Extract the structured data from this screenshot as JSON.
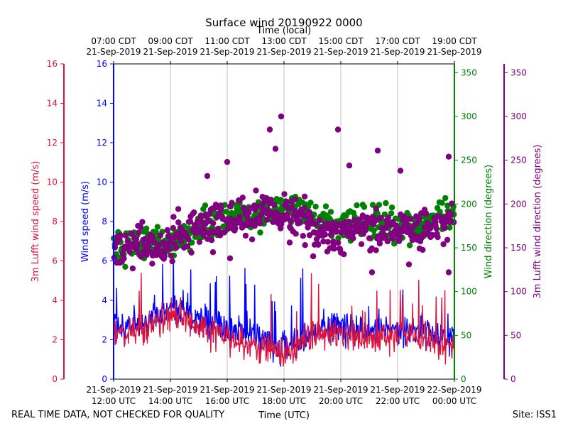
{
  "chart_data": {
    "type": "line",
    "title": "Surface wind 20190922 0000",
    "top_axis_label": "Time (local)",
    "xlabel": "Time (UTC)",
    "footer_left": "REAL TIME DATA, NOT CHECKED FOR QUALITY",
    "footer_right": "Site: ISS1",
    "x_range_hours_utc": [
      12,
      24
    ],
    "bottom_ticks": [
      {
        "hour": 12,
        "date": "21-Sep-2019",
        "time": "12:00 UTC"
      },
      {
        "hour": 14,
        "date": "21-Sep-2019",
        "time": "14:00 UTC"
      },
      {
        "hour": 16,
        "date": "21-Sep-2019",
        "time": "16:00 UTC"
      },
      {
        "hour": 18,
        "date": "21-Sep-2019",
        "time": "18:00 UTC"
      },
      {
        "hour": 20,
        "date": "21-Sep-2019",
        "time": "20:00 UTC"
      },
      {
        "hour": 22,
        "date": "21-Sep-2019",
        "time": "22:00 UTC"
      },
      {
        "hour": 24,
        "date": "22-Sep-2019",
        "time": "00:00 UTC"
      }
    ],
    "top_ticks": [
      {
        "hour": 12,
        "time": "07:00 CDT",
        "date": "21-Sep-2019"
      },
      {
        "hour": 14,
        "time": "09:00 CDT",
        "date": "21-Sep-2019"
      },
      {
        "hour": 16,
        "time": "11:00 CDT",
        "date": "21-Sep-2019"
      },
      {
        "hour": 18,
        "time": "13:00 CDT",
        "date": "21-Sep-2019"
      },
      {
        "hour": 20,
        "time": "15:00 CDT",
        "date": "21-Sep-2019"
      },
      {
        "hour": 22,
        "time": "17:00 CDT",
        "date": "21-Sep-2019"
      },
      {
        "hour": 24,
        "time": "19:00 CDT",
        "date": "21-Sep-2019"
      }
    ],
    "axes": {
      "speed_left": {
        "label": "Wind speed (m/s)",
        "range": [
          0,
          16
        ],
        "ticks": [
          "0",
          "2",
          "4",
          "6",
          "8",
          "10",
          "12",
          "14",
          "16"
        ],
        "color": "#0000ff"
      },
      "lufft_speed": {
        "label": "3m Lufft wind speed (m/s)",
        "range": [
          0,
          16
        ],
        "ticks": [
          "0",
          "2",
          "4",
          "6",
          "8",
          "10",
          "12",
          "14",
          "16"
        ],
        "color": "#dc143c"
      },
      "direction_right": {
        "label": "Wind direction (degrees)",
        "range": [
          0,
          360
        ],
        "ticks": [
          "0",
          "50",
          "100",
          "150",
          "200",
          "250",
          "300",
          "350"
        ],
        "color": "#008000"
      },
      "lufft_direction": {
        "label": "3m Lufft wind direction (degrees)",
        "range": [
          0,
          360
        ],
        "ticks": [
          "0",
          "50",
          "100",
          "150",
          "200",
          "250",
          "300",
          "350"
        ],
        "color": "#800080"
      }
    },
    "series": [
      {
        "name": "Wind speed",
        "kind": "line",
        "axis": "speed",
        "color": "#0000ff",
        "profile": [
          [
            12.0,
            2.7
          ],
          [
            13.0,
            2.8
          ],
          [
            14.0,
            3.6
          ],
          [
            14.5,
            3.4
          ],
          [
            15.0,
            3.0
          ],
          [
            16.0,
            2.6
          ],
          [
            17.0,
            2.2
          ],
          [
            18.0,
            1.5
          ],
          [
            19.0,
            2.4
          ],
          [
            20.0,
            2.7
          ],
          [
            21.0,
            2.4
          ],
          [
            22.0,
            2.5
          ],
          [
            23.0,
            2.4
          ],
          [
            24.0,
            2.2
          ]
        ]
      },
      {
        "name": "3m Lufft wind speed",
        "kind": "line",
        "axis": "speed",
        "color": "#dc143c",
        "profile": [
          [
            12.0,
            2.4
          ],
          [
            13.0,
            2.4
          ],
          [
            14.0,
            3.3
          ],
          [
            14.5,
            3.1
          ],
          [
            15.0,
            2.7
          ],
          [
            16.0,
            2.1
          ],
          [
            17.0,
            1.7
          ],
          [
            18.0,
            1.2
          ],
          [
            19.0,
            2.2
          ],
          [
            20.0,
            2.3
          ],
          [
            21.0,
            1.9
          ],
          [
            22.0,
            2.2
          ],
          [
            23.0,
            2.1
          ],
          [
            24.0,
            1.6
          ]
        ]
      },
      {
        "name": "Wind direction",
        "kind": "scatter",
        "axis": "direction",
        "color": "#008000",
        "profile": [
          [
            12.0,
            150
          ],
          [
            13.0,
            155
          ],
          [
            14.0,
            158
          ],
          [
            15.0,
            170
          ],
          [
            16.0,
            185
          ],
          [
            17.0,
            190
          ],
          [
            18.0,
            200
          ],
          [
            19.0,
            185
          ],
          [
            20.0,
            175
          ],
          [
            21.0,
            180
          ],
          [
            22.0,
            178
          ],
          [
            23.0,
            180
          ],
          [
            24.0,
            190
          ]
        ]
      },
      {
        "name": "3m Lufft wind direction",
        "kind": "scatter",
        "axis": "direction",
        "color": "#800080",
        "profile": [
          [
            12.0,
            150
          ],
          [
            13.0,
            155
          ],
          [
            14.0,
            155
          ],
          [
            15.0,
            178
          ],
          [
            16.0,
            180
          ],
          [
            17.0,
            190
          ],
          [
            18.0,
            195
          ],
          [
            19.0,
            170
          ],
          [
            20.0,
            165
          ],
          [
            21.0,
            172
          ],
          [
            22.0,
            170
          ],
          [
            23.0,
            168
          ],
          [
            24.0,
            180
          ]
        ]
      }
    ],
    "outliers": [
      {
        "series": "3m Lufft wind direction",
        "hour": 17.9,
        "value": 300
      },
      {
        "series": "3m Lufft wind direction",
        "hour": 17.5,
        "value": 285
      },
      {
        "series": "3m Lufft wind direction",
        "hour": 19.9,
        "value": 285
      },
      {
        "series": "3m Lufft wind direction",
        "hour": 17.7,
        "value": 263
      },
      {
        "series": "3m Lufft wind direction",
        "hour": 21.3,
        "value": 261
      },
      {
        "series": "3m Lufft wind direction",
        "hour": 23.8,
        "value": 254
      },
      {
        "series": "3m Lufft wind direction",
        "hour": 16.0,
        "value": 248
      },
      {
        "series": "3m Lufft wind direction",
        "hour": 20.3,
        "value": 244
      },
      {
        "series": "3m Lufft wind direction",
        "hour": 22.1,
        "value": 238
      },
      {
        "series": "3m Lufft wind direction",
        "hour": 15.3,
        "value": 232
      },
      {
        "series": "3m Lufft wind direction",
        "hour": 16.1,
        "value": 138
      },
      {
        "series": "3m Lufft wind direction",
        "hour": 15.5,
        "value": 145
      },
      {
        "series": "3m Lufft wind direction",
        "hour": 21.1,
        "value": 122
      },
      {
        "series": "3m Lufft wind direction",
        "hour": 23.8,
        "value": 122
      },
      {
        "series": "3m Lufft wind direction",
        "hour": 22.4,
        "value": 131
      },
      {
        "series": "3m Lufft wind direction",
        "hour": 18.2,
        "value": 156
      }
    ]
  }
}
